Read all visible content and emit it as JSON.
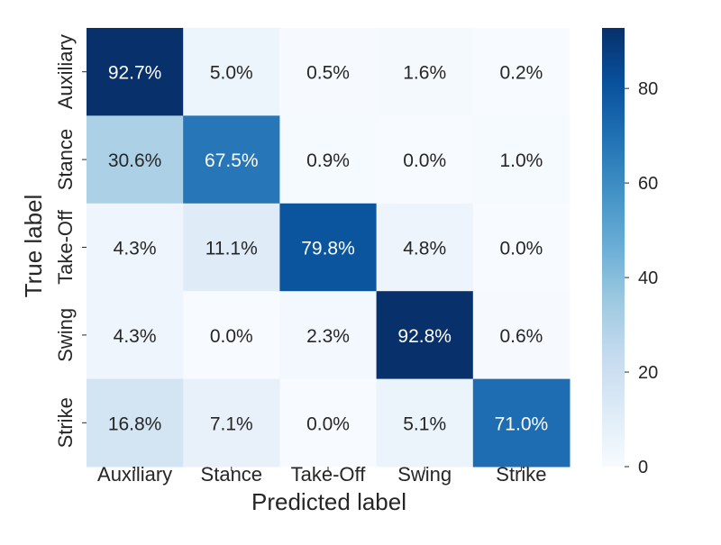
{
  "chart_data": {
    "type": "heatmap",
    "title": "",
    "xlabel": "Predicted label",
    "ylabel": "True label",
    "x_categories": [
      "Auxiliary",
      "Stance",
      "Take-Off",
      "Swing",
      "Strike"
    ],
    "y_categories": [
      "Auxiliary",
      "Stance",
      "Take-Off",
      "Swing",
      "Strike"
    ],
    "values": [
      [
        92.7,
        5.0,
        0.5,
        1.6,
        0.2
      ],
      [
        30.6,
        67.5,
        0.9,
        0.0,
        1.0
      ],
      [
        4.3,
        11.1,
        79.8,
        4.8,
        0.0
      ],
      [
        4.3,
        0.0,
        2.3,
        92.8,
        0.6
      ],
      [
        16.8,
        7.1,
        0.0,
        5.1,
        71.0
      ]
    ],
    "value_format": "percent-1-decimal",
    "colormap": "Blues",
    "colorbar": {
      "min": 0,
      "max": 92.8,
      "ticks": [
        0,
        20,
        40,
        60,
        80
      ]
    },
    "grid": false,
    "legend": "colorbar-right"
  }
}
